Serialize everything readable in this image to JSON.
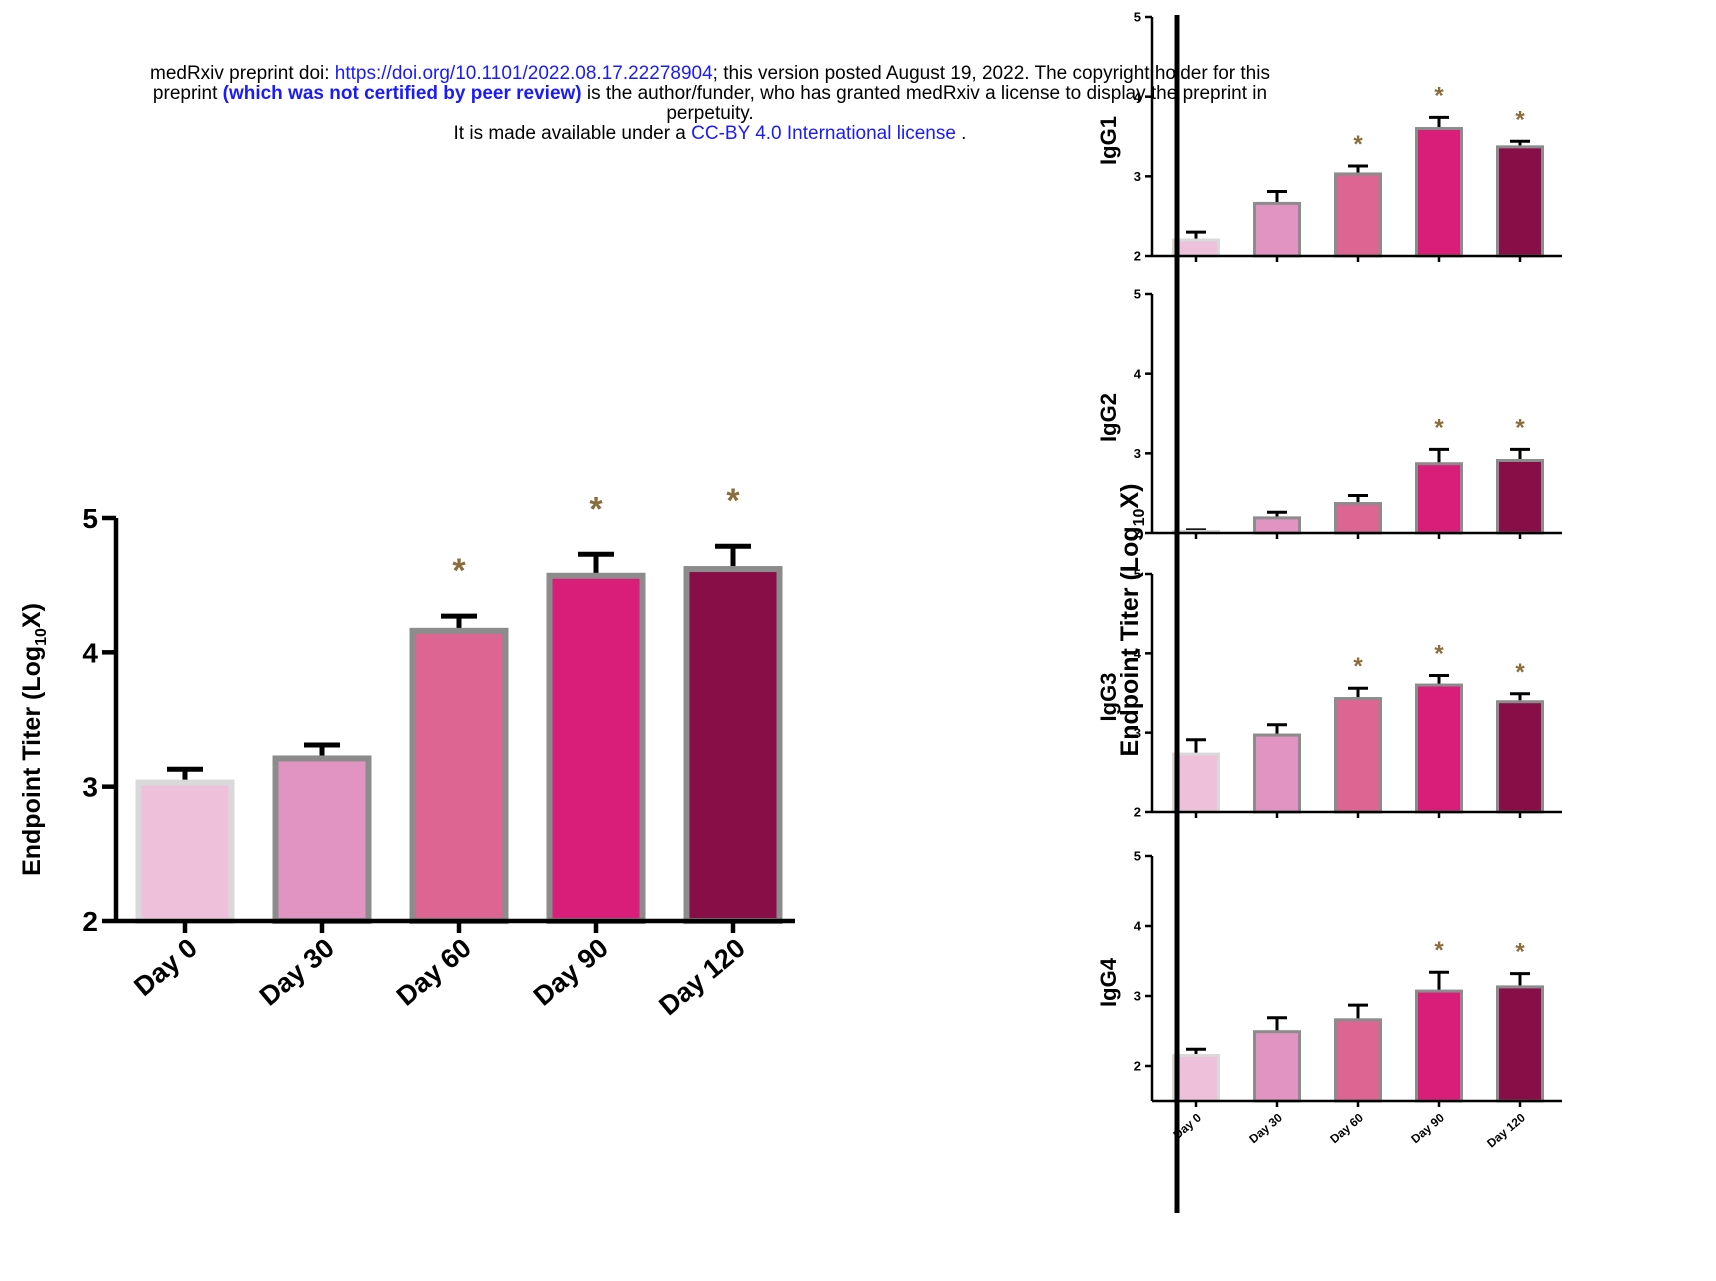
{
  "header": {
    "line1_prefix": "medRxiv preprint doi: ",
    "doi_link": "https://doi.org/10.1101/2022.08.17.22278904",
    "line1_suffix": "; this version posted August 19, 2022. The copyright holder for this",
    "line2_prefix": "preprint ",
    "not_certified": "(which was not certified by peer review)",
    "line2_suffix": " is the author/funder, who has granted medRxiv a license to display the preprint in",
    "line3": "perpetuity.",
    "line4_prefix": "It is made available under a ",
    "license_link": "CC-BY 4.0 International license",
    "line4_suffix": " ."
  },
  "colors": {
    "day0": "#eec0da",
    "day30": "#e194c1",
    "day60": "#dc6691",
    "day90": "#d81e79",
    "day120": "#870e46",
    "asterisk": "#8a6d3b",
    "bar_outline": "#8c8c8c"
  },
  "chart_data": [
    {
      "type": "bar",
      "panel": "left",
      "categories": [
        "Day 0",
        "Day 30",
        "Day 60",
        "Day 90",
        "Day 120"
      ],
      "values": [
        3.03,
        3.21,
        4.16,
        4.57,
        4.62
      ],
      "error": [
        0.1,
        0.1,
        0.11,
        0.16,
        0.17
      ],
      "significant": [
        false,
        false,
        true,
        true,
        true
      ],
      "significance_marker": "*",
      "ylabel_main": "Endpoint Titer (Log",
      "ylabel_sub": "10",
      "ylabel_end": "X)",
      "ylim": [
        2,
        5
      ],
      "yticks": [
        "2",
        "3",
        "4",
        "5"
      ]
    },
    {
      "type": "bar",
      "panel": "IgG1",
      "label": "IgG1",
      "categories": [
        "Day 0",
        "Day 30",
        "Day 60",
        "Day 90",
        "Day 120"
      ],
      "values": [
        2.2,
        2.66,
        3.03,
        3.6,
        3.37
      ],
      "error": [
        0.1,
        0.15,
        0.1,
        0.14,
        0.07
      ],
      "significant": [
        false,
        false,
        true,
        true,
        true
      ],
      "significance_marker": "*",
      "ylim": [
        2,
        5
      ],
      "yticks": [
        "2",
        "3",
        "4",
        "5"
      ]
    },
    {
      "type": "bar",
      "panel": "IgG2",
      "label": "IgG2",
      "categories": [
        "Day 0",
        "Day 30",
        "Day 60",
        "Day 90",
        "Day 120"
      ],
      "values": [
        2.02,
        2.19,
        2.37,
        2.87,
        2.91
      ],
      "error": [
        0.02,
        0.07,
        0.1,
        0.18,
        0.14
      ],
      "significant": [
        false,
        false,
        false,
        true,
        true
      ],
      "significance_marker": "*",
      "ylim": [
        2,
        5
      ],
      "yticks": [
        "2",
        "3",
        "4",
        "5"
      ]
    },
    {
      "type": "bar",
      "panel": "IgG3",
      "label": "IgG3",
      "categories": [
        "Day 0",
        "Day 30",
        "Day 60",
        "Day 90",
        "Day 120"
      ],
      "values": [
        2.73,
        2.97,
        3.43,
        3.6,
        3.39
      ],
      "error": [
        0.18,
        0.13,
        0.13,
        0.12,
        0.1
      ],
      "significant": [
        false,
        false,
        true,
        true,
        true
      ],
      "significance_marker": "*",
      "ylim": [
        2,
        5
      ],
      "yticks": [
        "2",
        "3",
        "4",
        "5"
      ]
    },
    {
      "type": "bar",
      "panel": "IgG4",
      "label": "IgG4",
      "categories": [
        "Day 0",
        "Day 30",
        "Day 60",
        "Day 90",
        "Day 120"
      ],
      "values": [
        2.15,
        2.49,
        2.66,
        3.07,
        3.13
      ],
      "error": [
        0.09,
        0.2,
        0.21,
        0.27,
        0.19
      ],
      "significant": [
        false,
        false,
        false,
        true,
        true
      ],
      "significance_marker": "*",
      "ylim": [
        1.5,
        5
      ],
      "yticks": [
        "2",
        "3",
        "4",
        "5"
      ]
    }
  ],
  "right_ylabel": {
    "main": "Endpoint Titer (Log",
    "sub": "10",
    "end": "X)"
  }
}
